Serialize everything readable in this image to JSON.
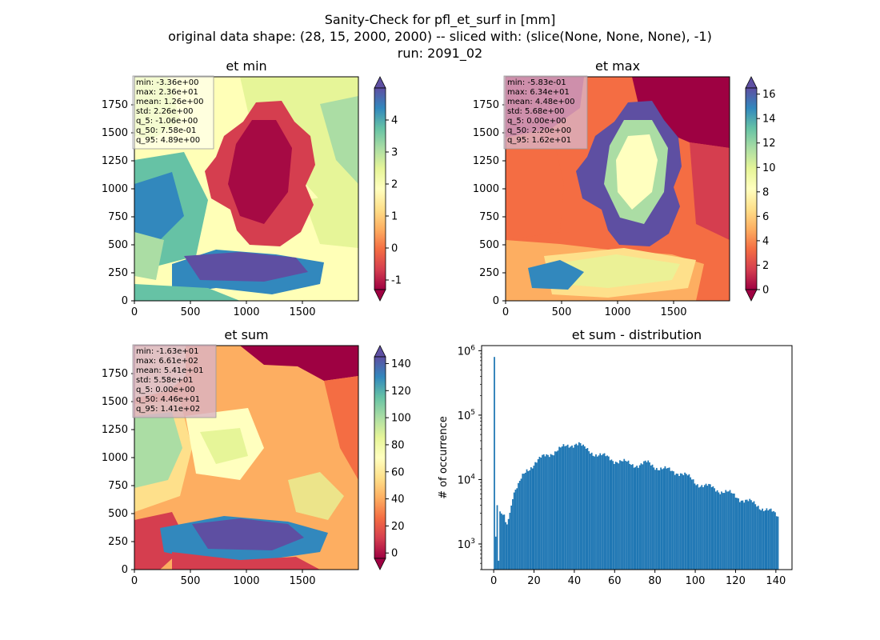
{
  "title_lines": [
    "Sanity-Check for pfl_et_surf in [mm]",
    "original data shape: (28, 15, 2000, 2000) -- sliced with: (slice(None, None, None), -1)",
    "run: 2091_02"
  ],
  "chart_data": [
    {
      "type": "heatmap",
      "title": "et min",
      "xticks": [
        0,
        500,
        1000,
        1500
      ],
      "yticks": [
        0,
        250,
        500,
        750,
        1000,
        1250,
        1500,
        1750
      ],
      "xlim": [
        0,
        2000
      ],
      "ylim": [
        0,
        2000
      ],
      "colorbar": {
        "cmap": "Spectral",
        "range": [
          -1.3,
          5.0
        ],
        "ticks": [
          -1,
          0,
          1,
          2,
          3,
          4
        ],
        "extend": "both"
      },
      "stats": [
        "min: -3.36e+00",
        "max: 2.36e+01",
        "mean: 1.26e+00",
        "std: 2.26e+00",
        "q_5: -1.06e+00",
        "q_50: 7.58e-01",
        "q_95: 4.89e+00"
      ],
      "stats_box_color": "#ffffff"
    },
    {
      "type": "heatmap",
      "title": "et max",
      "xticks": [
        0,
        500,
        1000,
        1500
      ],
      "yticks": [
        0,
        250,
        500,
        750,
        1000,
        1250,
        1500,
        1750
      ],
      "xlim": [
        0,
        2000
      ],
      "ylim": [
        0,
        2000
      ],
      "colorbar": {
        "cmap": "Spectral",
        "range": [
          0,
          16.5
        ],
        "ticks": [
          0,
          2,
          4,
          6,
          8,
          10,
          12,
          14,
          16
        ],
        "extend": "both"
      },
      "stats": [
        "min: -5.83e-01",
        "max: 6.34e+01",
        "mean: 4.48e+00",
        "std: 5.68e+00",
        "q_5: 0.00e+00",
        "q_50: 2.20e+00",
        "q_95: 1.62e+01"
      ],
      "stats_box_color": "#d9b3c6"
    },
    {
      "type": "heatmap",
      "title": "et sum",
      "xticks": [
        0,
        500,
        1000,
        1500
      ],
      "yticks": [
        0,
        250,
        500,
        750,
        1000,
        1250,
        1500,
        1750
      ],
      "xlim": [
        0,
        2000
      ],
      "ylim": [
        0,
        2000
      ],
      "colorbar": {
        "cmap": "Spectral",
        "range": [
          -4,
          145
        ],
        "ticks": [
          0,
          20,
          40,
          60,
          80,
          100,
          120,
          140
        ],
        "extend": "both"
      },
      "stats": [
        "min: -1.63e+01",
        "max: 6.61e+02",
        "mean: 5.41e+01",
        "std: 5.58e+01",
        "q_5: 0.00e+00",
        "q_50: 4.46e+01",
        "q_95: 1.41e+02"
      ],
      "stats_box_color": "#d9b3c6"
    },
    {
      "type": "bar",
      "title": "et sum - distribution",
      "ylabel": "# of occurrence",
      "xlabel": "",
      "yscale": "log",
      "xlim": [
        -6,
        148
      ],
      "ylim": [
        400,
        1200000
      ],
      "xticks": [
        0,
        20,
        40,
        60,
        80,
        100,
        120,
        140
      ],
      "yticks": [
        1000,
        10000,
        100000,
        1000000
      ],
      "ytick_labels": [
        [
          "10",
          "3"
        ],
        [
          "10",
          "4"
        ],
        [
          "10",
          "5"
        ],
        [
          "10",
          "6"
        ]
      ],
      "color": "#1f77b4",
      "bin_width": 0.7,
      "anchors": [
        [
          0,
          800000
        ],
        [
          0.7,
          1300
        ],
        [
          1.4,
          4000
        ],
        [
          2.1,
          550
        ],
        [
          2.8,
          3200
        ],
        [
          4,
          2500
        ],
        [
          5,
          3000
        ],
        [
          6,
          1800
        ],
        [
          7,
          2800
        ],
        [
          8,
          3500
        ],
        [
          9,
          5500
        ],
        [
          10,
          6500
        ],
        [
          12,
          8000
        ],
        [
          14,
          11000
        ],
        [
          16,
          14000
        ],
        [
          18,
          16000
        ],
        [
          20,
          18000
        ],
        [
          24,
          22000
        ],
        [
          28,
          26000
        ],
        [
          32,
          29000
        ],
        [
          36,
          33000
        ],
        [
          40,
          37000
        ],
        [
          42,
          36000
        ],
        [
          44,
          31000
        ],
        [
          48,
          27000
        ],
        [
          52,
          24000
        ],
        [
          56,
          22000
        ],
        [
          60,
          20000
        ],
        [
          64,
          18500
        ],
        [
          68,
          17500
        ],
        [
          72,
          17000
        ],
        [
          76,
          18000
        ],
        [
          80,
          16000
        ],
        [
          84,
          14500
        ],
        [
          88,
          13500
        ],
        [
          92,
          13000
        ],
        [
          96,
          11000
        ],
        [
          100,
          9000
        ],
        [
          104,
          8000
        ],
        [
          108,
          7500
        ],
        [
          112,
          6800
        ],
        [
          116,
          6200
        ],
        [
          120,
          5500
        ],
        [
          124,
          4800
        ],
        [
          128,
          4300
        ],
        [
          132,
          3800
        ],
        [
          136,
          3300
        ],
        [
          140,
          2800
        ],
        [
          141,
          2600
        ]
      ]
    }
  ]
}
